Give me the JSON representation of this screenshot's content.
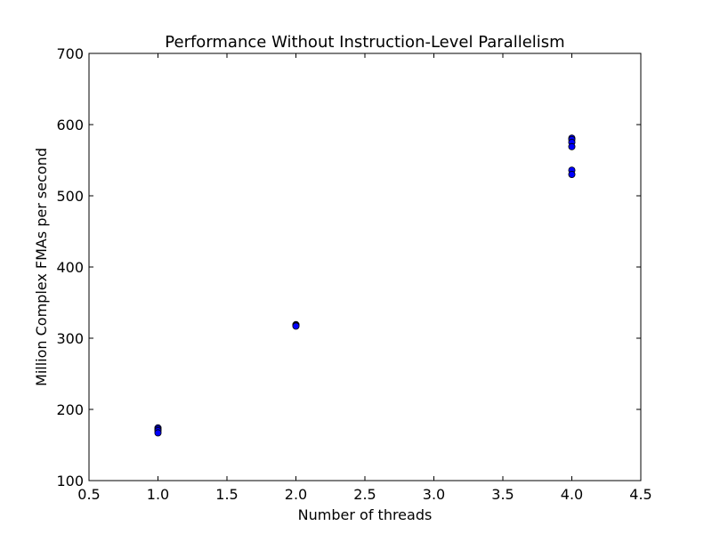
{
  "chart_data": {
    "type": "scatter",
    "title": "Performance Without Instruction-Level Parallelism",
    "xlabel": "Number of threads",
    "ylabel": "Million Complex FMAs per second",
    "xlim": [
      0.5,
      4.5
    ],
    "ylim": [
      100,
      700
    ],
    "xticks": [
      0.5,
      1.0,
      1.5,
      2.0,
      2.5,
      3.0,
      3.5,
      4.0,
      4.5
    ],
    "xtick_labels": [
      "0.5",
      "1.0",
      "1.5",
      "2.0",
      "2.5",
      "3.0",
      "3.5",
      "4.0",
      "4.5"
    ],
    "yticks": [
      100,
      200,
      300,
      400,
      500,
      600,
      700
    ],
    "ytick_labels": [
      "100",
      "200",
      "300",
      "400",
      "500",
      "600",
      "700"
    ],
    "grid": false,
    "marker_color": "#0000ff",
    "marker_edge_color": "#000000",
    "points": [
      {
        "x": 1.0,
        "y": 174
      },
      {
        "x": 1.0,
        "y": 172
      },
      {
        "x": 1.0,
        "y": 170
      },
      {
        "x": 1.0,
        "y": 167
      },
      {
        "x": 2.0,
        "y": 319
      },
      {
        "x": 2.0,
        "y": 318
      },
      {
        "x": 2.0,
        "y": 317
      },
      {
        "x": 4.0,
        "y": 581
      },
      {
        "x": 4.0,
        "y": 579
      },
      {
        "x": 4.0,
        "y": 575
      },
      {
        "x": 4.0,
        "y": 569
      },
      {
        "x": 4.0,
        "y": 536
      },
      {
        "x": 4.0,
        "y": 530
      }
    ]
  }
}
